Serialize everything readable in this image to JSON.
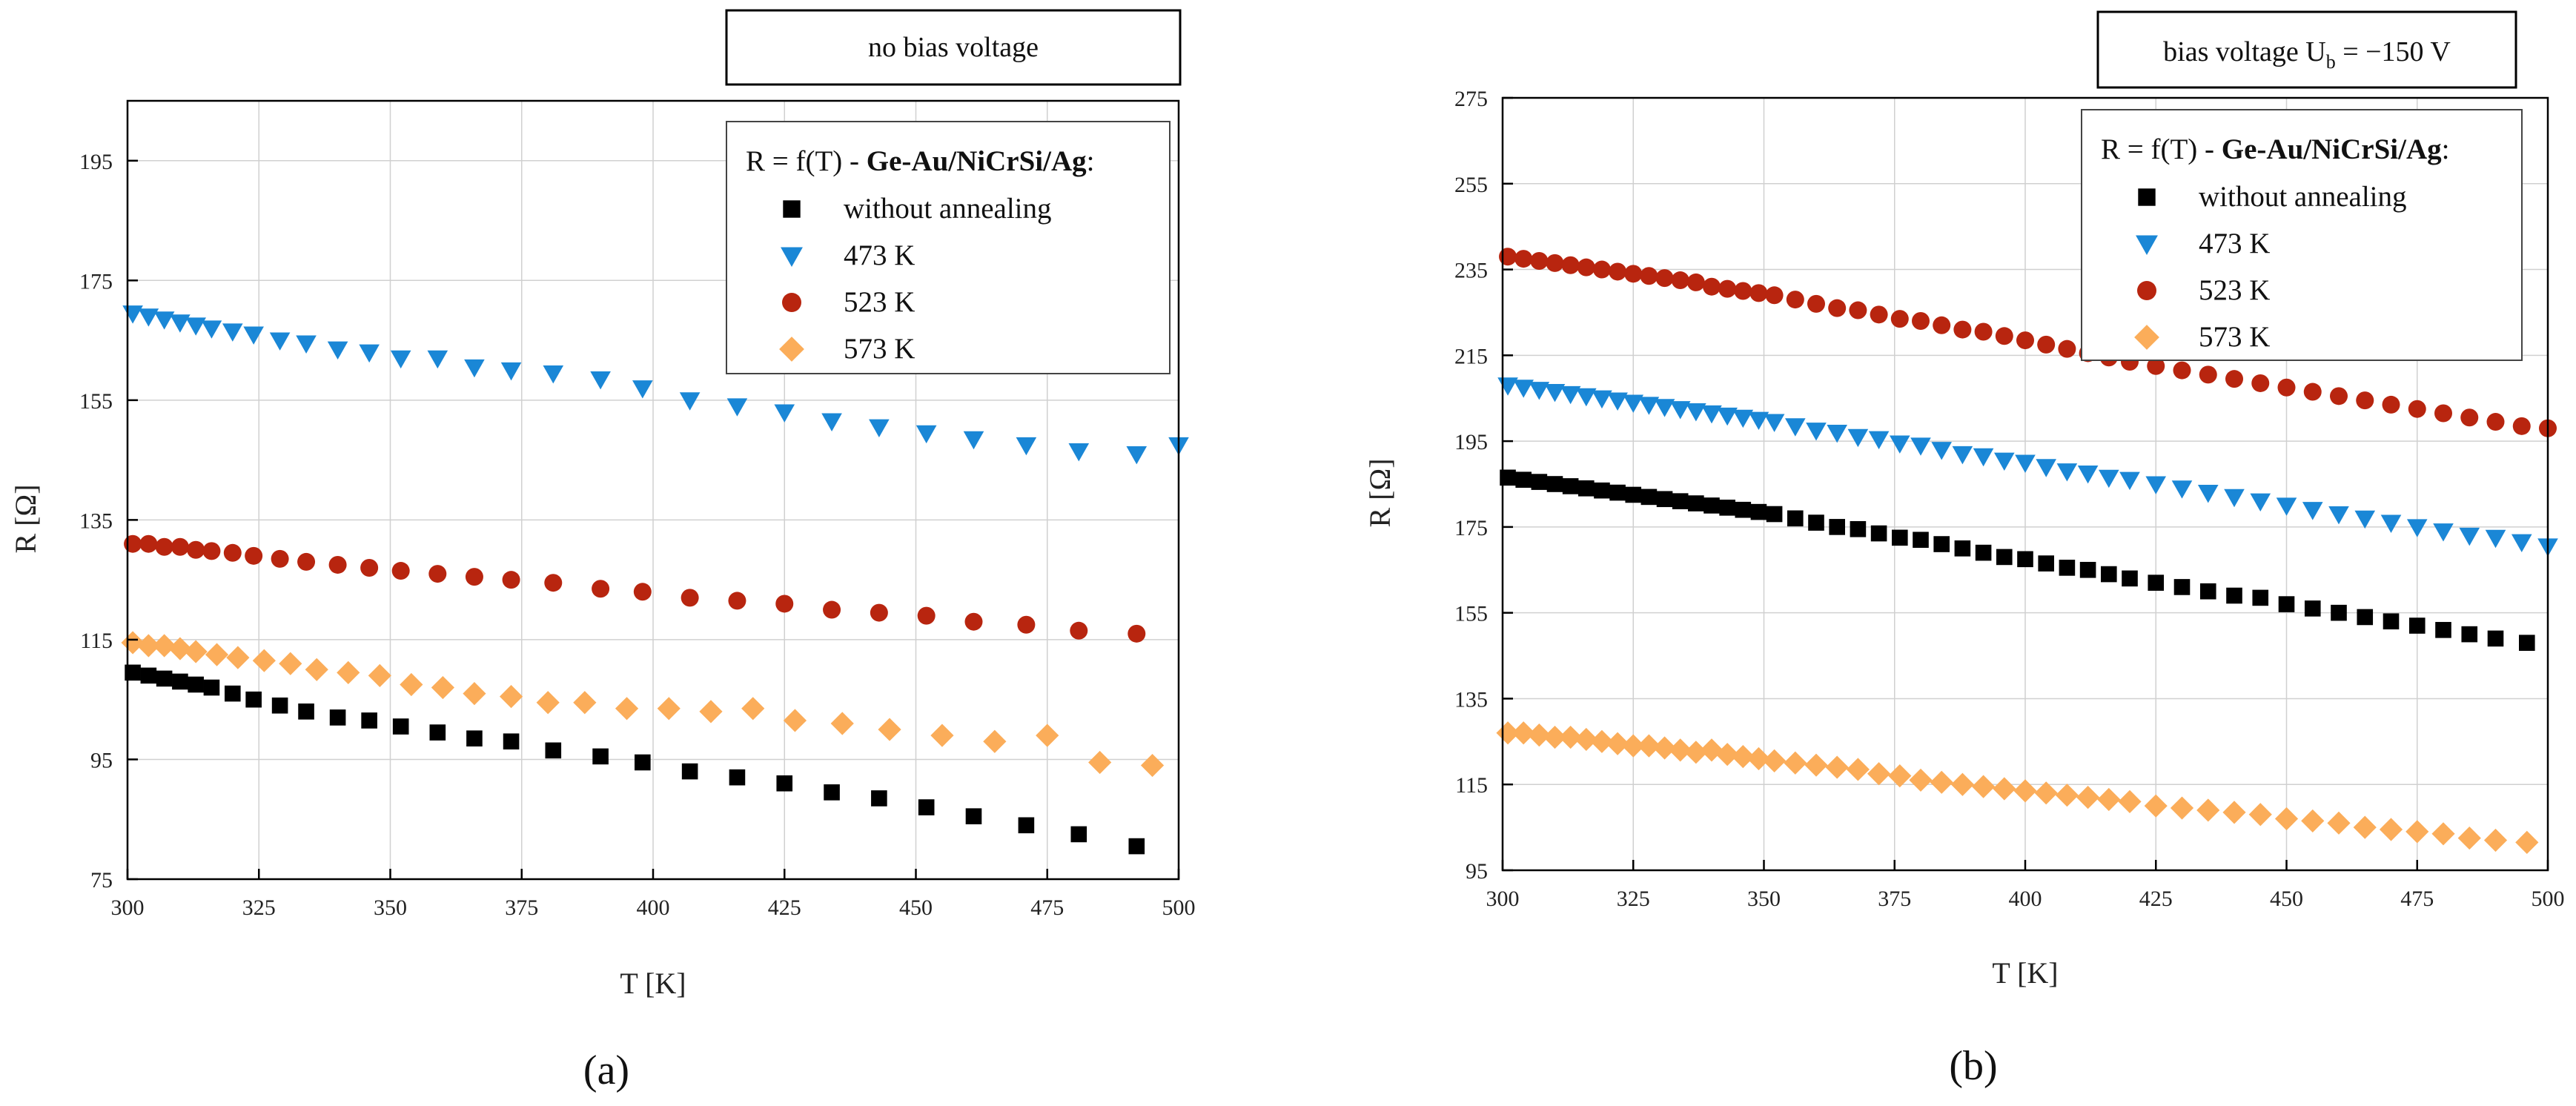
{
  "chart_data": [
    {
      "type": "scatter",
      "panel_label": "(a)",
      "title": "no bias voltage",
      "xlabel": "T [K]",
      "ylabel": "R [Ω]",
      "xlim": [
        300,
        500
      ],
      "ylim": [
        75,
        205
      ],
      "xticks": [
        300,
        325,
        350,
        375,
        400,
        425,
        450,
        475,
        500
      ],
      "yticks": [
        75,
        95,
        115,
        135,
        155,
        175,
        195
      ],
      "grid": true,
      "legend": {
        "placement": "top-right",
        "title_prefix": "R = f(T) - ",
        "title_bold": "Ge-Au/NiCrSi/Ag",
        "title_suffix": ":"
      },
      "series": [
        {
          "name": "without annealing",
          "marker": "square",
          "color": "#000000",
          "x": [
            301,
            304,
            307,
            310,
            313,
            316,
            320,
            324,
            329,
            334,
            340,
            346,
            352,
            359,
            366,
            373,
            381,
            390,
            398,
            407,
            416,
            425,
            434,
            443,
            452,
            461,
            471,
            481,
            492
          ],
          "y": [
            109.5,
            109,
            108.5,
            108,
            107.5,
            107,
            106,
            105,
            104,
            103,
            102,
            101.5,
            100.5,
            99.5,
            98.5,
            98,
            96.5,
            95.5,
            94.5,
            93,
            92,
            91,
            89.5,
            88.5,
            87,
            85.5,
            84,
            82.5,
            80.5
          ]
        },
        {
          "name": "473 K",
          "marker": "triangle-down",
          "color": "#1a87d6",
          "x": [
            301,
            304,
            307,
            310,
            313,
            316,
            320,
            324,
            329,
            334,
            340,
            346,
            352,
            359,
            366,
            373,
            381,
            390,
            398,
            407,
            416,
            425,
            434,
            443,
            452,
            461,
            471,
            481,
            492,
            500
          ],
          "y": [
            169.5,
            169,
            168.5,
            168,
            167.5,
            167,
            166.5,
            166,
            165,
            164.5,
            163.5,
            163,
            162,
            162,
            160.5,
            160,
            159.5,
            158.5,
            157,
            155,
            154,
            153,
            151.5,
            150.5,
            149.5,
            148.5,
            147.5,
            146.5,
            146,
            147.5
          ]
        },
        {
          "name": "523 K",
          "marker": "circle",
          "color": "#b8250f",
          "x": [
            301,
            304,
            307,
            310,
            313,
            316,
            320,
            324,
            329,
            334,
            340,
            346,
            352,
            359,
            366,
            373,
            381,
            390,
            398,
            407,
            416,
            425,
            434,
            443,
            452,
            461,
            471,
            481,
            492
          ],
          "y": [
            131,
            131,
            130.5,
            130.5,
            130,
            129.8,
            129.5,
            129,
            128.5,
            128,
            127.5,
            127,
            126.5,
            126,
            125.5,
            125,
            124.5,
            123.5,
            123,
            122,
            121.5,
            121,
            120,
            119.5,
            119,
            118,
            117.5,
            116.5,
            116
          ]
        },
        {
          "name": "573 K",
          "marker": "diamond",
          "color": "#fbad5a",
          "x": [
            301,
            304,
            307,
            310,
            313,
            317,
            321,
            326,
            331,
            336,
            342,
            348,
            354,
            360,
            366,
            373,
            380,
            387,
            395,
            403,
            411,
            419,
            427,
            436,
            445,
            455,
            465,
            475,
            485,
            495
          ],
          "y": [
            114.5,
            114,
            114,
            113.5,
            113,
            112.5,
            112,
            111.5,
            111,
            110,
            109.5,
            109,
            107.5,
            107,
            106,
            105.5,
            104.5,
            104.5,
            103.5,
            103.5,
            103,
            103.5,
            101.5,
            101,
            100,
            99,
            98,
            99,
            94.5,
            94
          ]
        }
      ]
    },
    {
      "type": "scatter",
      "panel_label": "(b)",
      "title_main": "bias voltage U",
      "title_sub": "b",
      "title_end": " = −150 V",
      "xlabel": "T [K]",
      "ylabel": "R [Ω]",
      "xlim": [
        300,
        500
      ],
      "ylim": [
        95,
        275
      ],
      "xticks": [
        300,
        325,
        350,
        375,
        400,
        425,
        450,
        475,
        500
      ],
      "yticks": [
        95,
        115,
        135,
        155,
        175,
        195,
        215,
        235,
        255,
        275
      ],
      "grid": true,
      "legend": {
        "placement": "top-right",
        "title_prefix": "R = f(T) - ",
        "title_bold": "Ge-Au/NiCrSi/Ag",
        "title_suffix": ":"
      },
      "series": [
        {
          "name": "without annealing",
          "marker": "square",
          "color": "#000000",
          "x": [
            301,
            304,
            307,
            310,
            313,
            316,
            319,
            322,
            325,
            328,
            331,
            334,
            337,
            340,
            343,
            346,
            349,
            352,
            356,
            360,
            364,
            368,
            372,
            376,
            380,
            384,
            388,
            392,
            396,
            400,
            404,
            408,
            412,
            416,
            420,
            425,
            430,
            435,
            440,
            445,
            450,
            455,
            460,
            465,
            470,
            475,
            480,
            485,
            490,
            496
          ],
          "y": [
            186.5,
            186,
            185.5,
            185,
            184.5,
            184,
            183.5,
            183,
            182.5,
            182,
            181.5,
            181,
            180.5,
            180,
            179.5,
            179,
            178.5,
            178,
            177,
            176,
            175,
            174.5,
            173.5,
            172.5,
            172,
            171,
            170,
            169,
            168,
            167.5,
            166.5,
            165.5,
            165,
            164,
            163,
            162,
            161,
            160,
            159,
            158.5,
            157,
            156,
            155,
            154,
            153,
            152,
            151,
            150,
            149,
            148
          ]
        },
        {
          "name": "473 K",
          "marker": "triangle-down",
          "color": "#1a87d6",
          "x": [
            301,
            304,
            307,
            310,
            313,
            316,
            319,
            322,
            325,
            328,
            331,
            334,
            337,
            340,
            343,
            346,
            349,
            352,
            356,
            360,
            364,
            368,
            372,
            376,
            380,
            384,
            388,
            392,
            396,
            400,
            404,
            408,
            412,
            416,
            420,
            425,
            430,
            435,
            440,
            445,
            450,
            455,
            460,
            465,
            470,
            475,
            480,
            485,
            490,
            495,
            500
          ],
          "y": [
            208,
            207.5,
            207,
            206.5,
            206,
            205.5,
            205,
            204.5,
            204,
            203.5,
            203,
            202.5,
            202,
            201.5,
            201,
            200.5,
            200,
            199.5,
            198.5,
            197.5,
            197,
            196,
            195.5,
            194.5,
            194,
            193,
            192,
            191.5,
            190.5,
            190,
            189,
            188,
            187.5,
            186.5,
            186,
            185,
            184,
            183,
            182,
            181,
            180,
            179,
            178,
            177,
            176,
            175,
            174,
            173,
            172.5,
            171.5,
            170.5
          ]
        },
        {
          "name": "523 K",
          "marker": "circle",
          "color": "#b8250f",
          "x": [
            301,
            304,
            307,
            310,
            313,
            316,
            319,
            322,
            325,
            328,
            331,
            334,
            337,
            340,
            343,
            346,
            349,
            352,
            356,
            360,
            364,
            368,
            372,
            376,
            380,
            384,
            388,
            392,
            396,
            400,
            404,
            408,
            412,
            416,
            420,
            425,
            430,
            435,
            440,
            445,
            450,
            455,
            460,
            465,
            470,
            475,
            480,
            485,
            490,
            495,
            500
          ],
          "y": [
            238,
            237.5,
            237,
            236.5,
            236,
            235.5,
            235,
            234.5,
            234,
            233.5,
            233,
            232.5,
            232,
            231,
            230.5,
            230,
            229.5,
            229,
            228,
            227,
            226,
            225.5,
            224.5,
            223.5,
            223,
            222,
            221,
            220.5,
            219.5,
            218.5,
            217.5,
            216.5,
            215.5,
            214.5,
            213.5,
            212.5,
            211.5,
            210.5,
            209.5,
            208.5,
            207.5,
            206.5,
            205.5,
            204.5,
            203.5,
            202.5,
            201.5,
            200.5,
            199.5,
            198.5,
            198
          ]
        },
        {
          "name": "573 K",
          "marker": "diamond",
          "color": "#fbad5a",
          "x": [
            301,
            304,
            307,
            310,
            313,
            316,
            319,
            322,
            325,
            328,
            331,
            334,
            337,
            340,
            343,
            346,
            349,
            352,
            356,
            360,
            364,
            368,
            372,
            376,
            380,
            384,
            388,
            392,
            396,
            400,
            404,
            408,
            412,
            416,
            420,
            425,
            430,
            435,
            440,
            445,
            450,
            455,
            460,
            465,
            470,
            475,
            480,
            485,
            490,
            496
          ],
          "y": [
            127,
            127,
            126.5,
            126,
            126,
            125.5,
            125,
            124.5,
            124,
            124,
            123.5,
            123,
            122.5,
            123,
            122,
            121.5,
            121,
            120.5,
            120,
            119.5,
            119,
            118.5,
            117.5,
            117,
            116,
            115.5,
            115,
            114.5,
            114,
            113.5,
            113,
            112.5,
            112,
            111.5,
            111,
            110,
            109.5,
            109,
            108.5,
            108,
            107,
            106.5,
            106,
            105,
            104.5,
            104,
            103.5,
            102.5,
            102,
            101.5
          ]
        }
      ]
    }
  ]
}
